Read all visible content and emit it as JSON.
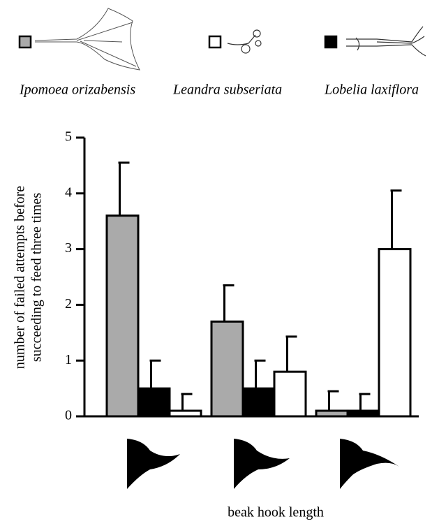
{
  "chart_data": {
    "type": "bar",
    "y_label": [
      "number of failed attempts before",
      "succeeding to feed three times"
    ],
    "x_label": "beak hook length",
    "categories": [
      null,
      null,
      null
    ],
    "series": [
      {
        "name": "Ipomoea orizabensis",
        "color": "#aaaaaa",
        "values": [
          3.6,
          1.7,
          0.1
        ],
        "errors": [
          0.95,
          0.65,
          0.35
        ]
      },
      {
        "name": "Leandra subseriata",
        "color": "#ffffff",
        "values": [
          0.1,
          0.8,
          3.0
        ],
        "errors": [
          0.3,
          0.63,
          1.05
        ]
      },
      {
        "name": "Lobelia laxiflora",
        "color": "#000000",
        "values": [
          0.5,
          0.5,
          0.1
        ],
        "errors": [
          0.5,
          0.5,
          0.3
        ]
      }
    ],
    "ylim": [
      0,
      5
    ],
    "yticks": [
      0,
      1,
      2,
      3,
      4,
      5
    ],
    "grid": false
  }
}
